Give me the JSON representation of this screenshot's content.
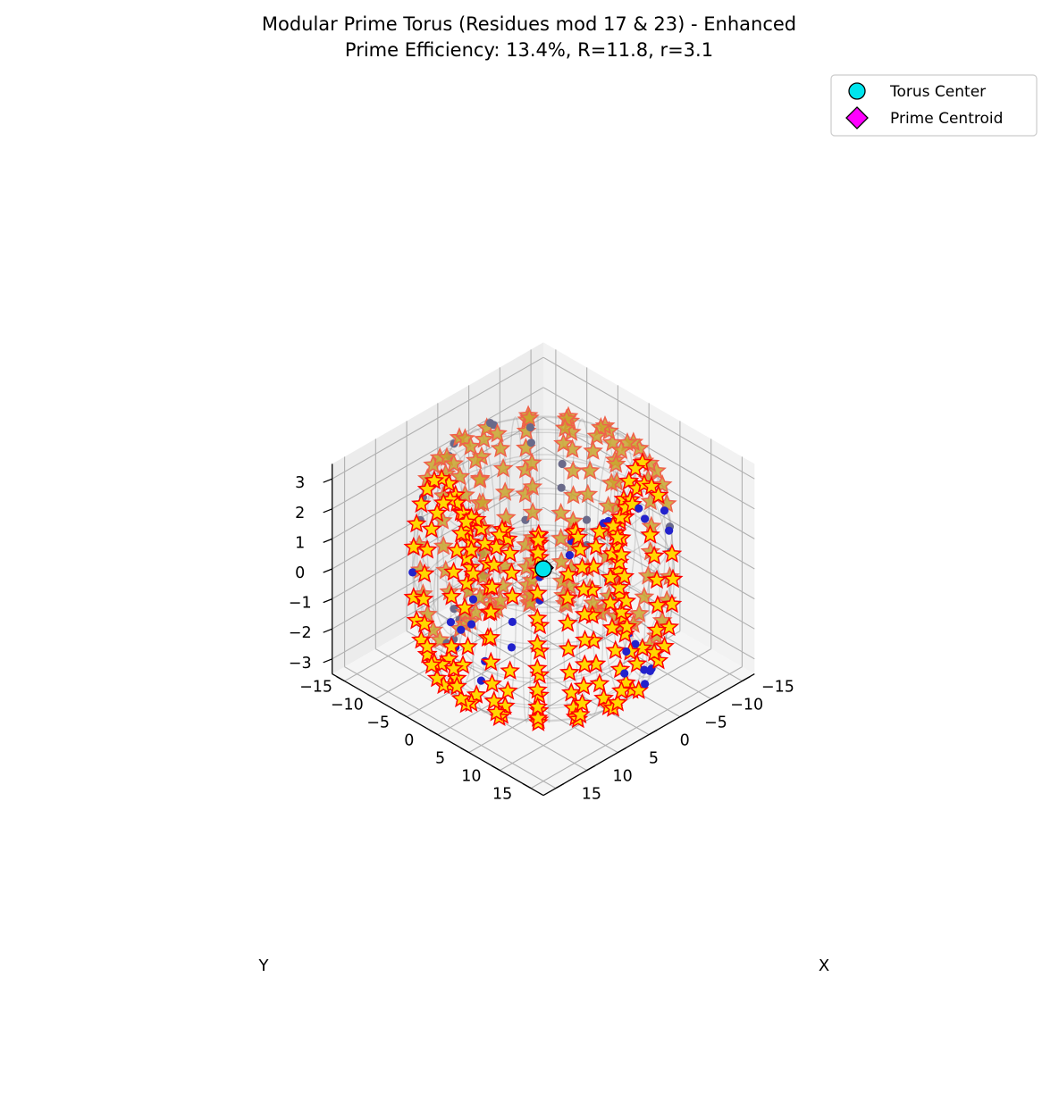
{
  "chart_data": {
    "type": "scatter",
    "projection": "3d",
    "title": "Modular Prime Torus (Residues mod 17 & 23) - Enhanced",
    "subtitle": "Prime Efficiency: 13.4%, R=11.8, r=3.1",
    "xlabel": "X",
    "ylabel": "Y",
    "zlabel": "",
    "xlim": [
      -17,
      17
    ],
    "ylim": [
      -17,
      17
    ],
    "zlim": [
      -3.5,
      3.5
    ],
    "x_ticks": [
      "−15",
      "−10",
      "−5",
      "0",
      "5",
      "10",
      "15"
    ],
    "y_ticks": [
      "−15",
      "−10",
      "−5",
      "0",
      "5",
      "10",
      "15"
    ],
    "z_ticks": [
      "−3",
      "−2",
      "−1",
      "0",
      "1",
      "2",
      "3"
    ],
    "grid": true,
    "legend_position": "top-right",
    "torus": {
      "R": 11.8,
      "r": 3.1
    },
    "series": [
      {
        "name": "",
        "marker": "circle",
        "color": "#2222cc",
        "u_steps": 17,
        "v_steps": 23,
        "description_values": "all residue points on torus surface"
      },
      {
        "name": "",
        "marker": "star",
        "color": "#ffd700",
        "edge": "#ff0000",
        "prime_efficiency_percent": 13.4
      }
    ],
    "legend": [
      {
        "label": "Torus Center",
        "marker": "circle",
        "color": "#00e5ee"
      },
      {
        "label": "Prime Centroid",
        "marker": "diamond",
        "color": "#ff00ff"
      }
    ],
    "centers": {
      "torus_center": [
        0,
        0,
        0
      ],
      "prime_centroid": [
        0.4,
        -0.3,
        0.05
      ]
    }
  }
}
